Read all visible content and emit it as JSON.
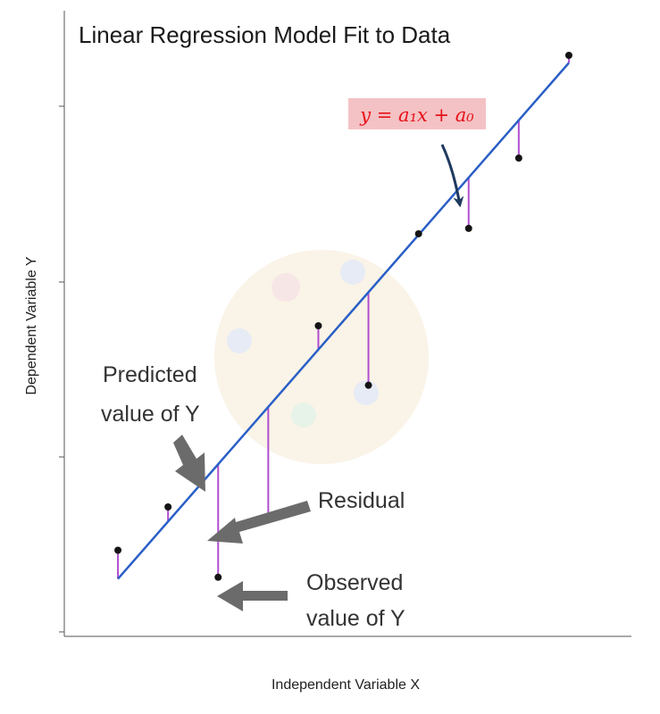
{
  "chart_data": {
    "type": "scatter",
    "title": "Linear Regression Model Fit to Data",
    "xlabel": "Independent Variable X",
    "ylabel": "Dependent Variable Y",
    "xlim": [
      0,
      10
    ],
    "ylim": [
      0,
      10
    ],
    "tick_labels_shown": false,
    "grid": false,
    "points": [
      {
        "x": 0.5,
        "y": 0.85
      },
      {
        "x": 1.5,
        "y": 1.65
      },
      {
        "x": 2.5,
        "y": 0.35
      },
      {
        "x": 3.5,
        "y": 1.45
      },
      {
        "x": 4.5,
        "y": 5.0
      },
      {
        "x": 5.5,
        "y": 3.9
      },
      {
        "x": 6.5,
        "y": 6.7
      },
      {
        "x": 7.5,
        "y": 6.8
      },
      {
        "x": 8.5,
        "y": 8.1
      },
      {
        "x": 9.5,
        "y": 10.0
      }
    ],
    "fit_line": {
      "equation": "y = a₁x + a₀",
      "slope": 1.06,
      "intercept": -0.21
    },
    "colors": {
      "fit_line": "#2a5fc6",
      "residual": "#b04fd0",
      "points": "#141414",
      "equation_text": "#e8101a",
      "equation_background": "#f4c2c4",
      "equation_arrow": "#1f3a5f",
      "callout_arrow": "#6b6b6b",
      "axes": "#555555"
    },
    "annotations": {
      "predicted": [
        "Predicted",
        "value of Y"
      ],
      "residual": "Residual",
      "observed": [
        "Observed",
        "value of Y"
      ]
    }
  }
}
